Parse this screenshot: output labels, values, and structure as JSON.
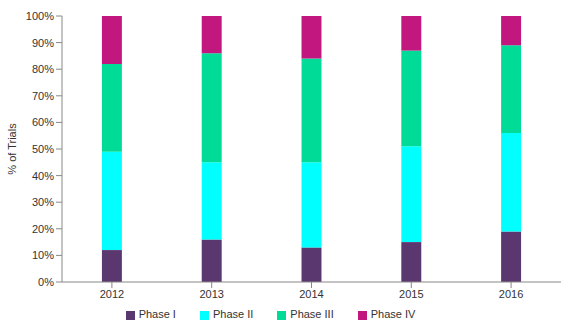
{
  "chart_data": {
    "type": "bar",
    "stacked": true,
    "y_label": "% of Trials",
    "categories": [
      "2012",
      "2013",
      "2014",
      "2015",
      "2016"
    ],
    "series": [
      {
        "name": "Phase I",
        "color": "#5b3770",
        "values": [
          12,
          16,
          13,
          15,
          19
        ]
      },
      {
        "name": "Phase II",
        "color": "#00ffff",
        "values": [
          37,
          29,
          32,
          36,
          37
        ]
      },
      {
        "name": "Phase III",
        "color": "#00dc98",
        "values": [
          33,
          41,
          39,
          36,
          33
        ]
      },
      {
        "name": "Phase IV",
        "color": "#c2177f",
        "values": [
          18,
          14,
          16,
          13,
          11
        ]
      }
    ],
    "ylim": [
      0,
      100
    ],
    "yticks": [
      {
        "value": 0,
        "label": "0%"
      },
      {
        "value": 10,
        "label": "10%"
      },
      {
        "value": 20,
        "label": "20%"
      },
      {
        "value": 30,
        "label": "30%"
      },
      {
        "value": 40,
        "label": "40%"
      },
      {
        "value": 50,
        "label": "50%"
      },
      {
        "value": 60,
        "label": "60%"
      },
      {
        "value": 70,
        "label": "70%"
      },
      {
        "value": 80,
        "label": "80%"
      },
      {
        "value": 90,
        "label": "90%"
      },
      {
        "value": 100,
        "label": "100%"
      }
    ],
    "grid": false,
    "legend": "bottom"
  }
}
